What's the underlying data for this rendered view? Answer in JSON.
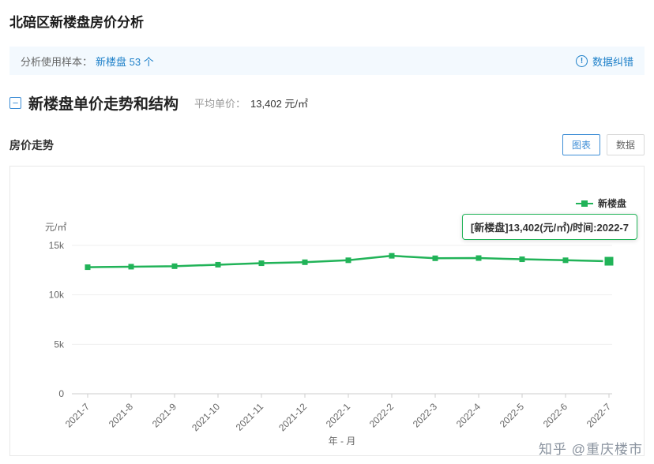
{
  "page": {
    "title": "北碚区新楼盘房价分析"
  },
  "sample_bar": {
    "label": "分析使用样本：",
    "value": "新楼盘 53 个",
    "correction": "数据纠错"
  },
  "section": {
    "title": "新楼盘单价走势和结构",
    "avg_label": "平均单价：",
    "avg_value": "13,402 元/㎡"
  },
  "panel": {
    "title": "房价走势",
    "tabs": [
      {
        "label": "图表",
        "active": true
      },
      {
        "label": "数据",
        "active": false
      }
    ]
  },
  "chart_data": {
    "type": "line",
    "title": "房价走势",
    "categories": [
      "2021-7",
      "2021-8",
      "2021-9",
      "2021-10",
      "2021-11",
      "2021-12",
      "2022-1",
      "2022-2",
      "2022-3",
      "2022-4",
      "2022-5",
      "2022-6",
      "2022-7"
    ],
    "series": [
      {
        "name": "新楼盘",
        "values": [
          12800,
          12850,
          12900,
          13050,
          13200,
          13300,
          13500,
          13950,
          13700,
          13720,
          13600,
          13500,
          13402
        ]
      }
    ],
    "ylabel": "元/㎡",
    "xlabel": "年 - 月",
    "ylim": [
      0,
      15000
    ],
    "yticks": [
      "0",
      "5k",
      "10k",
      "15k"
    ],
    "legend_position": "top-right",
    "grid": true,
    "line_color": "#21b358",
    "tooltip": "[新楼盘]13,402(元/㎡)/时间:2022-7"
  },
  "watermark": "知乎 @重庆楼市",
  "colors": {
    "accent_blue": "#1e80c9",
    "green": "#21b358",
    "info_bg": "#f3f9fe"
  }
}
